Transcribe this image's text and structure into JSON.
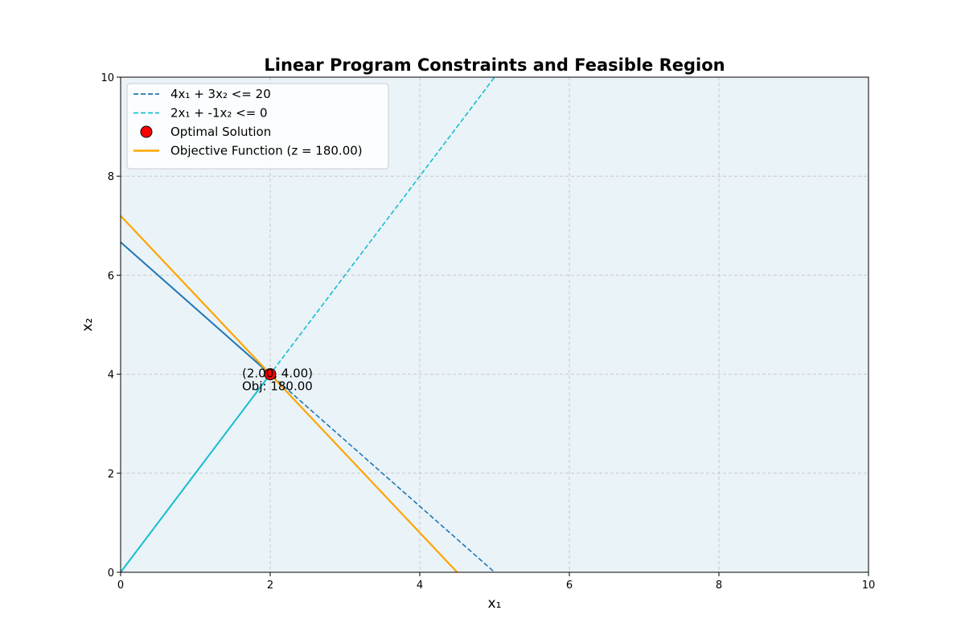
{
  "chart_data": {
    "type": "line",
    "title": "Linear Program Constraints and Feasible Region",
    "xlabel": "x₁",
    "ylabel": "x₂",
    "xlim": [
      0,
      10
    ],
    "ylim": [
      0,
      10
    ],
    "xticks": [
      "0",
      "2",
      "4",
      "6",
      "8",
      "10"
    ],
    "yticks": [
      "0",
      "2",
      "4",
      "6",
      "8",
      "10"
    ],
    "grid": true,
    "legend_position": "top-left",
    "background_color": "#eaf3f8",
    "series": [
      {
        "name": "4x₁ + 3x₂ <= 20",
        "style": "dashed",
        "color": "#1f77b4",
        "points": [
          [
            0,
            6.667
          ],
          [
            5,
            0
          ]
        ]
      },
      {
        "name": "2x₁ + -1x₂ <= 0",
        "style": "dashed",
        "color": "#17becf",
        "points": [
          [
            0,
            0
          ],
          [
            5.2,
            10.4
          ]
        ]
      },
      {
        "name": "Optimal Solution",
        "style": "marker",
        "color": "#ff0000",
        "points": [
          [
            2,
            4
          ]
        ]
      },
      {
        "name": "Objective Function (z = 180.00)",
        "style": "solid",
        "color": "#ffa500",
        "points": [
          [
            0,
            7.2
          ],
          [
            4.5,
            0
          ]
        ]
      }
    ],
    "boundary_edges": [
      {
        "color": "#1f77b4",
        "points": [
          [
            0,
            6.667
          ],
          [
            2,
            4
          ]
        ]
      },
      {
        "color": "#17becf",
        "points": [
          [
            0,
            0
          ],
          [
            2,
            4
          ]
        ]
      }
    ],
    "annotation": {
      "x": 2,
      "y": 4,
      "line1": "(2.00, 4.00)",
      "line2": "Obj: 180.00"
    }
  }
}
